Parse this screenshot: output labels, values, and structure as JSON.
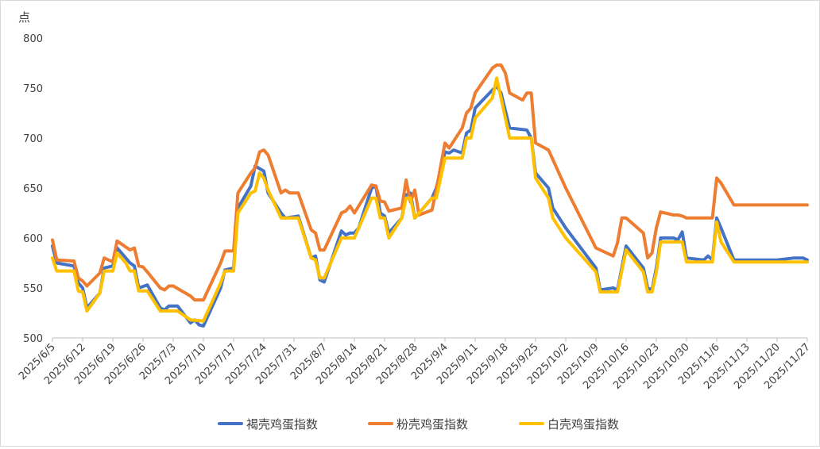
{
  "chart_data": {
    "type": "line",
    "ylabel": "点",
    "ylim": [
      500,
      800
    ],
    "yticks": [
      500,
      550,
      600,
      650,
      700,
      750,
      800
    ],
    "grid": false,
    "legend_position": "bottom",
    "x_tick_labels": [
      "2025/6/5",
      "2025/6/12",
      "2025/6/19",
      "2025/6/26",
      "2025/7/3",
      "2025/7/10",
      "2025/7/17",
      "2025/7/24",
      "2025/7/31",
      "2025/8/7",
      "2025/8/14",
      "2025/8/21",
      "2025/8/28",
      "2025/9/4",
      "2025/9/11",
      "2025/9/18",
      "2025/9/25",
      "2025/10/2",
      "2025/10/9",
      "2025/10/16",
      "2025/10/23",
      "2025/10/30",
      "2025/11/6",
      "2025/11/13",
      "2025/11/20",
      "2025/11/27"
    ],
    "series": [
      {
        "name": "褐壳鸡蛋指数",
        "color": "#4472c4",
        "points": [
          [
            "2025/6/5",
            592
          ],
          [
            "2025/6/6",
            575
          ],
          [
            "2025/6/10",
            572
          ],
          [
            "2025/6/11",
            555
          ],
          [
            "2025/6/12",
            550
          ],
          [
            "2025/6/13",
            530
          ],
          [
            "2025/6/16",
            545
          ],
          [
            "2025/6/17",
            570
          ],
          [
            "2025/6/19",
            572
          ],
          [
            "2025/6/20",
            590
          ],
          [
            "2025/6/21",
            585
          ],
          [
            "2025/6/23",
            575
          ],
          [
            "2025/6/24",
            572
          ],
          [
            "2025/6/25",
            550
          ],
          [
            "2025/6/27",
            553
          ],
          [
            "2025/6/30",
            530
          ],
          [
            "2025/7/1",
            528
          ],
          [
            "2025/7/2",
            532
          ],
          [
            "2025/7/4",
            532
          ],
          [
            "2025/7/7",
            515
          ],
          [
            "2025/7/8",
            518
          ],
          [
            "2025/7/9",
            513
          ],
          [
            "2025/7/10",
            512
          ],
          [
            "2025/7/14",
            550
          ],
          [
            "2025/7/15",
            568
          ],
          [
            "2025/7/17",
            570
          ],
          [
            "2025/7/18",
            630
          ],
          [
            "2025/7/21",
            652
          ],
          [
            "2025/7/22",
            672
          ],
          [
            "2025/7/24",
            667
          ],
          [
            "2025/7/25",
            645
          ],
          [
            "2025/7/28",
            625
          ],
          [
            "2025/7/29",
            620
          ],
          [
            "2025/8/1",
            622
          ],
          [
            "2025/8/4",
            580
          ],
          [
            "2025/8/5",
            582
          ],
          [
            "2025/8/6",
            558
          ],
          [
            "2025/8/7",
            556
          ],
          [
            "2025/8/11",
            607
          ],
          [
            "2025/8/12",
            603
          ],
          [
            "2025/8/13",
            605
          ],
          [
            "2025/8/14",
            605
          ],
          [
            "2025/8/15",
            610
          ],
          [
            "2025/8/18",
            650
          ],
          [
            "2025/8/19",
            652
          ],
          [
            "2025/8/20",
            625
          ],
          [
            "2025/8/21",
            622
          ],
          [
            "2025/8/22",
            605
          ],
          [
            "2025/8/25",
            620
          ],
          [
            "2025/8/26",
            643
          ],
          [
            "2025/8/27",
            645
          ],
          [
            "2025/8/28",
            620
          ],
          [
            "2025/9/1",
            640
          ],
          [
            "2025/9/2",
            650
          ],
          [
            "2025/9/4",
            686
          ],
          [
            "2025/9/5",
            685
          ],
          [
            "2025/9/6",
            688
          ],
          [
            "2025/9/8",
            685
          ],
          [
            "2025/9/9",
            705
          ],
          [
            "2025/9/10",
            708
          ],
          [
            "2025/9/11",
            730
          ],
          [
            "2025/9/15",
            748
          ],
          [
            "2025/9/16",
            752
          ],
          [
            "2025/9/17",
            745
          ],
          [
            "2025/9/19",
            710
          ],
          [
            "2025/9/23",
            708
          ],
          [
            "2025/9/24",
            700
          ],
          [
            "2025/9/25",
            665
          ],
          [
            "2025/9/28",
            650
          ],
          [
            "2025/9/29",
            630
          ],
          [
            "2025/10/2",
            610
          ],
          [
            "2025/10/9",
            570
          ],
          [
            "2025/10/10",
            548
          ],
          [
            "2025/10/13",
            550
          ],
          [
            "2025/10/14",
            548
          ],
          [
            "2025/10/16",
            592
          ],
          [
            "2025/10/20",
            570
          ],
          [
            "2025/10/21",
            550
          ],
          [
            "2025/10/22",
            548
          ],
          [
            "2025/10/23",
            570
          ],
          [
            "2025/10/24",
            600
          ],
          [
            "2025/10/27",
            600
          ],
          [
            "2025/10/28",
            598
          ],
          [
            "2025/10/29",
            606
          ],
          [
            "2025/10/30",
            580
          ],
          [
            "2025/11/3",
            578
          ],
          [
            "2025/11/4",
            582
          ],
          [
            "2025/11/5",
            578
          ],
          [
            "2025/11/6",
            620
          ],
          [
            "2025/11/7",
            610
          ],
          [
            "2025/11/10",
            578
          ],
          [
            "2025/11/20",
            578
          ],
          [
            "2025/11/24",
            580
          ],
          [
            "2025/11/26",
            580
          ],
          [
            "2025/11/27",
            578
          ]
        ]
      },
      {
        "name": "粉壳鸡蛋指数",
        "color": "#ed7d31",
        "points": [
          [
            "2025/6/5",
            598
          ],
          [
            "2025/6/6",
            578
          ],
          [
            "2025/6/10",
            577
          ],
          [
            "2025/6/11",
            560
          ],
          [
            "2025/6/12",
            557
          ],
          [
            "2025/6/13",
            552
          ],
          [
            "2025/6/16",
            565
          ],
          [
            "2025/6/17",
            580
          ],
          [
            "2025/6/19",
            576
          ],
          [
            "2025/6/20",
            597
          ],
          [
            "2025/6/23",
            588
          ],
          [
            "2025/6/24",
            590
          ],
          [
            "2025/6/25",
            572
          ],
          [
            "2025/6/26",
            571
          ],
          [
            "2025/6/27",
            566
          ],
          [
            "2025/6/30",
            550
          ],
          [
            "2025/7/1",
            548
          ],
          [
            "2025/7/2",
            552
          ],
          [
            "2025/7/3",
            552
          ],
          [
            "2025/7/7",
            542
          ],
          [
            "2025/7/8",
            538
          ],
          [
            "2025/7/10",
            538
          ],
          [
            "2025/7/14",
            575
          ],
          [
            "2025/7/15",
            587
          ],
          [
            "2025/7/17",
            587
          ],
          [
            "2025/7/18",
            645
          ],
          [
            "2025/7/21",
            665
          ],
          [
            "2025/7/22",
            670
          ],
          [
            "2025/7/23",
            686
          ],
          [
            "2025/7/24",
            688
          ],
          [
            "2025/7/25",
            683
          ],
          [
            "2025/7/28",
            645
          ],
          [
            "2025/7/29",
            648
          ],
          [
            "2025/7/30",
            645
          ],
          [
            "2025/8/1",
            645
          ],
          [
            "2025/8/4",
            608
          ],
          [
            "2025/8/5",
            605
          ],
          [
            "2025/8/6",
            588
          ],
          [
            "2025/8/7",
            588
          ],
          [
            "2025/8/11",
            625
          ],
          [
            "2025/8/12",
            627
          ],
          [
            "2025/8/13",
            632
          ],
          [
            "2025/8/14",
            625
          ],
          [
            "2025/8/18",
            653
          ],
          [
            "2025/8/19",
            652
          ],
          [
            "2025/8/20",
            637
          ],
          [
            "2025/8/21",
            636
          ],
          [
            "2025/8/22",
            627
          ],
          [
            "2025/8/25",
            630
          ],
          [
            "2025/8/26",
            658
          ],
          [
            "2025/8/27",
            636
          ],
          [
            "2025/8/28",
            648
          ],
          [
            "2025/8/29",
            623
          ],
          [
            "2025/9/1",
            628
          ],
          [
            "2025/9/2",
            648
          ],
          [
            "2025/9/4",
            695
          ],
          [
            "2025/9/5",
            690
          ],
          [
            "2025/9/8",
            710
          ],
          [
            "2025/9/9",
            725
          ],
          [
            "2025/9/10",
            730
          ],
          [
            "2025/9/11",
            745
          ],
          [
            "2025/9/15",
            770
          ],
          [
            "2025/9/16",
            773
          ],
          [
            "2025/9/17",
            773
          ],
          [
            "2025/9/18",
            765
          ],
          [
            "2025/9/19",
            745
          ],
          [
            "2025/9/22",
            738
          ],
          [
            "2025/9/23",
            745
          ],
          [
            "2025/9/24",
            745
          ],
          [
            "2025/9/25",
            695
          ],
          [
            "2025/9/28",
            688
          ],
          [
            "2025/10/2",
            650
          ],
          [
            "2025/10/9",
            590
          ],
          [
            "2025/10/13",
            582
          ],
          [
            "2025/10/14",
            595
          ],
          [
            "2025/10/15",
            620
          ],
          [
            "2025/10/16",
            620
          ],
          [
            "2025/10/20",
            605
          ],
          [
            "2025/10/21",
            580
          ],
          [
            "2025/10/22",
            585
          ],
          [
            "2025/10/23",
            610
          ],
          [
            "2025/10/24",
            626
          ],
          [
            "2025/10/27",
            623
          ],
          [
            "2025/10/28",
            623
          ],
          [
            "2025/10/29",
            622
          ],
          [
            "2025/10/30",
            620
          ],
          [
            "2025/11/5",
            620
          ],
          [
            "2025/11/6",
            660
          ],
          [
            "2025/11/7",
            655
          ],
          [
            "2025/11/10",
            633
          ],
          [
            "2025/11/27",
            633
          ]
        ]
      },
      {
        "name": "白壳鸡蛋指数",
        "color": "#ffc000",
        "points": [
          [
            "2025/6/5",
            580
          ],
          [
            "2025/6/6",
            567
          ],
          [
            "2025/6/10",
            567
          ],
          [
            "2025/6/11",
            547
          ],
          [
            "2025/6/12",
            546
          ],
          [
            "2025/6/13",
            527
          ],
          [
            "2025/6/16",
            545
          ],
          [
            "2025/6/17",
            567
          ],
          [
            "2025/6/19",
            567
          ],
          [
            "2025/6/20",
            585
          ],
          [
            "2025/6/22",
            575
          ],
          [
            "2025/6/23",
            567
          ],
          [
            "2025/6/24",
            567
          ],
          [
            "2025/6/25",
            547
          ],
          [
            "2025/6/27",
            547
          ],
          [
            "2025/6/30",
            527
          ],
          [
            "2025/7/4",
            527
          ],
          [
            "2025/7/7",
            518
          ],
          [
            "2025/7/10",
            517
          ],
          [
            "2025/7/14",
            555
          ],
          [
            "2025/7/15",
            567
          ],
          [
            "2025/7/17",
            567
          ],
          [
            "2025/7/18",
            625
          ],
          [
            "2025/7/21",
            645
          ],
          [
            "2025/7/22",
            647
          ],
          [
            "2025/7/23",
            665
          ],
          [
            "2025/7/24",
            660
          ],
          [
            "2025/7/25",
            648
          ],
          [
            "2025/7/28",
            620
          ],
          [
            "2025/8/1",
            620
          ],
          [
            "2025/8/4",
            580
          ],
          [
            "2025/8/5",
            578
          ],
          [
            "2025/8/6",
            560
          ],
          [
            "2025/8/7",
            560
          ],
          [
            "2025/8/11",
            600
          ],
          [
            "2025/8/12",
            600
          ],
          [
            "2025/8/14",
            600
          ],
          [
            "2025/8/18",
            640
          ],
          [
            "2025/8/19",
            640
          ],
          [
            "2025/8/20",
            620
          ],
          [
            "2025/8/21",
            620
          ],
          [
            "2025/8/22",
            600
          ],
          [
            "2025/8/25",
            620
          ],
          [
            "2025/8/26",
            640
          ],
          [
            "2025/8/27",
            640
          ],
          [
            "2025/8/28",
            620
          ],
          [
            "2025/9/1",
            640
          ],
          [
            "2025/9/2",
            640
          ],
          [
            "2025/9/4",
            680
          ],
          [
            "2025/9/8",
            680
          ],
          [
            "2025/9/9",
            700
          ],
          [
            "2025/9/10",
            700
          ],
          [
            "2025/9/11",
            720
          ],
          [
            "2025/9/15",
            740
          ],
          [
            "2025/9/16",
            760
          ],
          [
            "2025/9/17",
            740
          ],
          [
            "2025/9/19",
            700
          ],
          [
            "2025/9/24",
            700
          ],
          [
            "2025/9/25",
            660
          ],
          [
            "2025/9/28",
            640
          ],
          [
            "2025/9/29",
            620
          ],
          [
            "2025/10/2",
            600
          ],
          [
            "2025/10/9",
            566
          ],
          [
            "2025/10/10",
            546
          ],
          [
            "2025/10/14",
            546
          ],
          [
            "2025/10/16",
            588
          ],
          [
            "2025/10/20",
            566
          ],
          [
            "2025/10/21",
            546
          ],
          [
            "2025/10/22",
            546
          ],
          [
            "2025/10/23",
            566
          ],
          [
            "2025/10/24",
            596
          ],
          [
            "2025/10/29",
            596
          ],
          [
            "2025/10/30",
            576
          ],
          [
            "2025/11/5",
            576
          ],
          [
            "2025/11/6",
            616
          ],
          [
            "2025/11/7",
            596
          ],
          [
            "2025/11/10",
            576
          ],
          [
            "2025/11/27",
            576
          ]
        ]
      }
    ]
  }
}
